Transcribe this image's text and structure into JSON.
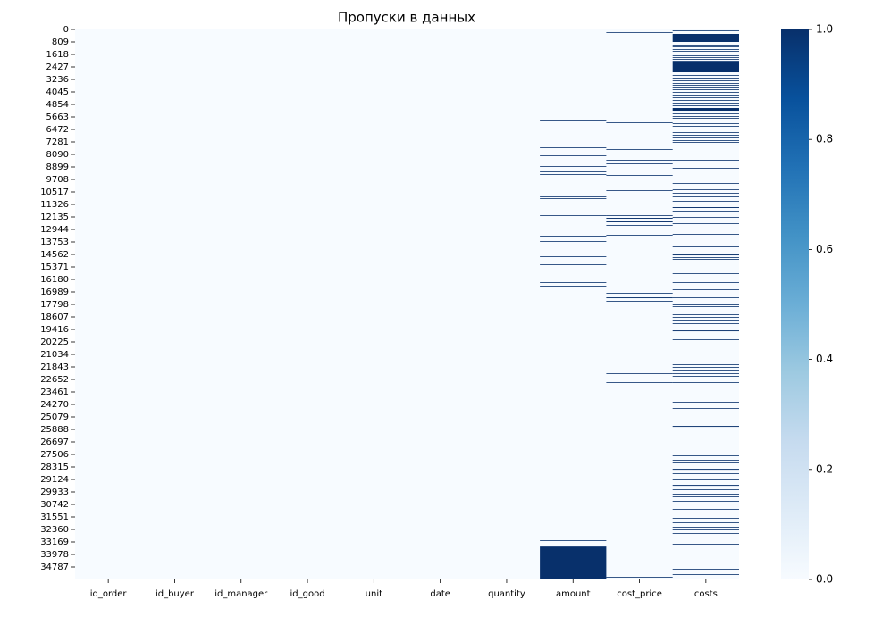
{
  "chart_data": {
    "type": "heatmap",
    "title": "Пропуски в данных",
    "ylim": [
      0,
      35596
    ],
    "yticks": [
      0,
      809,
      1618,
      2427,
      3236,
      4045,
      4854,
      5663,
      6472,
      7281,
      8090,
      8899,
      9708,
      10517,
      11326,
      12135,
      12944,
      13753,
      14562,
      15371,
      16180,
      16989,
      17798,
      18607,
      19416,
      20225,
      21034,
      21843,
      22652,
      23461,
      24270,
      25079,
      25888,
      26697,
      27506,
      28315,
      29124,
      29933,
      30742,
      31551,
      32360,
      33169,
      33978,
      34787
    ],
    "colors": {
      "present": "#f7fbff",
      "missing": "#08306b"
    },
    "series": [
      {
        "name": "id_order",
        "missing": []
      },
      {
        "name": "id_buyer",
        "missing": []
      },
      {
        "name": "id_manager",
        "missing": []
      },
      {
        "name": "id_good",
        "missing": []
      },
      {
        "name": "unit",
        "missing": []
      },
      {
        "name": "date",
        "missing": []
      },
      {
        "name": "quantity",
        "missing": []
      },
      {
        "name": "amount",
        "missing": [
          [
            5838,
            5863
          ],
          [
            7630,
            7655
          ],
          [
            8150,
            8175
          ],
          [
            8844,
            8869
          ],
          [
            9190,
            9215
          ],
          [
            9364,
            9389
          ],
          [
            9653,
            9678
          ],
          [
            10173,
            10198
          ],
          [
            10809,
            10834
          ],
          [
            10924,
            10949
          ],
          [
            11791,
            11816
          ],
          [
            12022,
            12047
          ],
          [
            13352,
            13377
          ],
          [
            13699,
            13724
          ],
          [
            14681,
            14706
          ],
          [
            15201,
            15226
          ],
          [
            16357,
            16382
          ],
          [
            16588,
            16613
          ],
          [
            33061,
            33086
          ],
          [
            33466,
            35596
          ]
        ]
      },
      {
        "name": "cost_price",
        "missing": [
          [
            173,
            198
          ],
          [
            4277,
            4302
          ],
          [
            4797,
            4822
          ],
          [
            6011,
            6036
          ],
          [
            7745,
            7770
          ],
          [
            8439,
            8464
          ],
          [
            8670,
            8695
          ],
          [
            9421,
            9446
          ],
          [
            10404,
            10429
          ],
          [
            11271,
            11326
          ],
          [
            12022,
            12047
          ],
          [
            12196,
            12251
          ],
          [
            12427,
            12482
          ],
          [
            12658,
            12683
          ],
          [
            13294,
            13319
          ],
          [
            15606,
            15631
          ],
          [
            17051,
            17076
          ],
          [
            17340,
            17395
          ],
          [
            17571,
            17596
          ],
          [
            22253,
            22278
          ],
          [
            22831,
            22856
          ],
          [
            35431,
            35456
          ]
        ]
      },
      {
        "name": "costs",
        "missing": [
          [
            58,
            83
          ],
          [
            289,
            809
          ],
          [
            983,
            1008
          ],
          [
            1098,
            1123
          ],
          [
            1272,
            1297
          ],
          [
            1387,
            1412
          ],
          [
            1561,
            1586
          ],
          [
            1676,
            1701
          ],
          [
            1792,
            1817
          ],
          [
            1907,
            1932
          ],
          [
            2023,
            2048
          ],
          [
            2138,
            2774
          ],
          [
            2948,
            2973
          ],
          [
            3121,
            3146
          ],
          [
            3295,
            3320
          ],
          [
            3468,
            3493
          ],
          [
            3584,
            3609
          ],
          [
            3757,
            3782
          ],
          [
            3873,
            3898
          ],
          [
            4046,
            4071
          ],
          [
            4219,
            4244
          ],
          [
            4393,
            4418
          ],
          [
            4566,
            4591
          ],
          [
            4740,
            4765
          ],
          [
            4913,
            4938
          ],
          [
            5086,
            5260
          ],
          [
            5433,
            5458
          ],
          [
            5607,
            5632
          ],
          [
            5722,
            5747
          ],
          [
            5896,
            5921
          ],
          [
            6069,
            6094
          ],
          [
            6242,
            6267
          ],
          [
            6416,
            6441
          ],
          [
            6647,
            6672
          ],
          [
            6820,
            6845
          ],
          [
            6994,
            7019
          ],
          [
            7167,
            7192
          ],
          [
            7283,
            7308
          ],
          [
            8034,
            8089
          ],
          [
            8439,
            8464
          ],
          [
            8959,
            8984
          ],
          [
            9653,
            9678
          ],
          [
            9942,
            9967
          ],
          [
            10173,
            10198
          ],
          [
            10346,
            10371
          ],
          [
            10577,
            10602
          ],
          [
            10809,
            10834
          ],
          [
            11098,
            11123
          ],
          [
            11502,
            11557
          ],
          [
            11734,
            11759
          ],
          [
            12138,
            12163
          ],
          [
            12543,
            12568
          ],
          [
            12889,
            12914
          ],
          [
            13236,
            13261
          ],
          [
            14045,
            14070
          ],
          [
            14566,
            14621
          ],
          [
            14739,
            14764
          ],
          [
            14855,
            14880
          ],
          [
            15779,
            15804
          ],
          [
            16357,
            16382
          ],
          [
            16820,
            16845
          ],
          [
            17340,
            17365
          ],
          [
            17802,
            17827
          ],
          [
            17918,
            17943
          ],
          [
            18439,
            18464
          ],
          [
            18612,
            18637
          ],
          [
            18785,
            18810
          ],
          [
            19016,
            19041
          ],
          [
            19479,
            19534
          ],
          [
            20057,
            20082
          ],
          [
            21675,
            21700
          ],
          [
            21848,
            21873
          ],
          [
            22022,
            22047
          ],
          [
            22253,
            22278
          ],
          [
            22426,
            22451
          ],
          [
            22831,
            22856
          ],
          [
            24103,
            24128
          ],
          [
            24507,
            24532
          ],
          [
            25663,
            25718
          ],
          [
            27571,
            27596
          ],
          [
            27860,
            27885
          ],
          [
            28033,
            28058
          ],
          [
            28438,
            28493
          ],
          [
            28727,
            28752
          ],
          [
            29131,
            29156
          ],
          [
            29478,
            29533
          ],
          [
            29594,
            29619
          ],
          [
            29767,
            29792
          ],
          [
            30056,
            30081
          ],
          [
            30229,
            30254
          ],
          [
            30518,
            30543
          ],
          [
            31039,
            31064
          ],
          [
            31617,
            31642
          ],
          [
            31906,
            31931
          ],
          [
            32195,
            32220
          ],
          [
            32368,
            32393
          ],
          [
            32599,
            32624
          ],
          [
            33293,
            33318
          ],
          [
            33929,
            33954
          ],
          [
            34912,
            34937
          ],
          [
            35259,
            35284
          ]
        ]
      }
    ],
    "colorbar": {
      "lim": [
        0,
        1
      ],
      "ticks": [
        {
          "value": 0,
          "label": "0.0"
        },
        0.2,
        0.4,
        0.6,
        0.8,
        {
          "value": 1,
          "label": "1.0"
        }
      ],
      "colors": [
        "#f7fbff",
        "#deebf7",
        "#c6dbef",
        "#9ecae1",
        "#6baed6",
        "#4292c6",
        "#2171b5",
        "#08519c",
        "#08306b"
      ]
    }
  }
}
